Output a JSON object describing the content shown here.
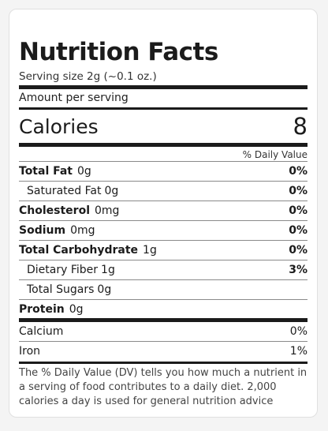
{
  "label": {
    "title": "Nutrition Facts",
    "serving_size": "Serving size 2g (~0.1 oz.)",
    "amount_per_serving": "Amount per serving",
    "calories_label": "Calories",
    "calories_value": "8",
    "daily_value_header": "% Daily Value"
  },
  "nutrients": [
    {
      "name": "Total Fat",
      "amount": "0g",
      "dv": "0%"
    },
    {
      "name": "Saturated Fat",
      "amount": "0g",
      "dv": "0%"
    },
    {
      "name": "Cholesterol",
      "amount": "0mg",
      "dv": "0%"
    },
    {
      "name": "Sodium",
      "amount": "0mg",
      "dv": "0%"
    },
    {
      "name": "Total Carbohydrate",
      "amount": "1g",
      "dv": "0%"
    },
    {
      "name": "Dietary Fiber",
      "amount": "1g",
      "dv": "3%"
    },
    {
      "name": "Total Sugars",
      "amount": "0g",
      "dv": ""
    },
    {
      "name": "Protein",
      "amount": "0g",
      "dv": ""
    }
  ],
  "micronutrients": [
    {
      "name": "Calcium",
      "dv": "0%"
    },
    {
      "name": "Iron",
      "dv": "1%"
    }
  ],
  "footnote": "The % Daily Value (DV) tells you how much a nutrient in a serving of food contributes to a daily diet. 2,000 calories a day is used for general nutrition advice"
}
